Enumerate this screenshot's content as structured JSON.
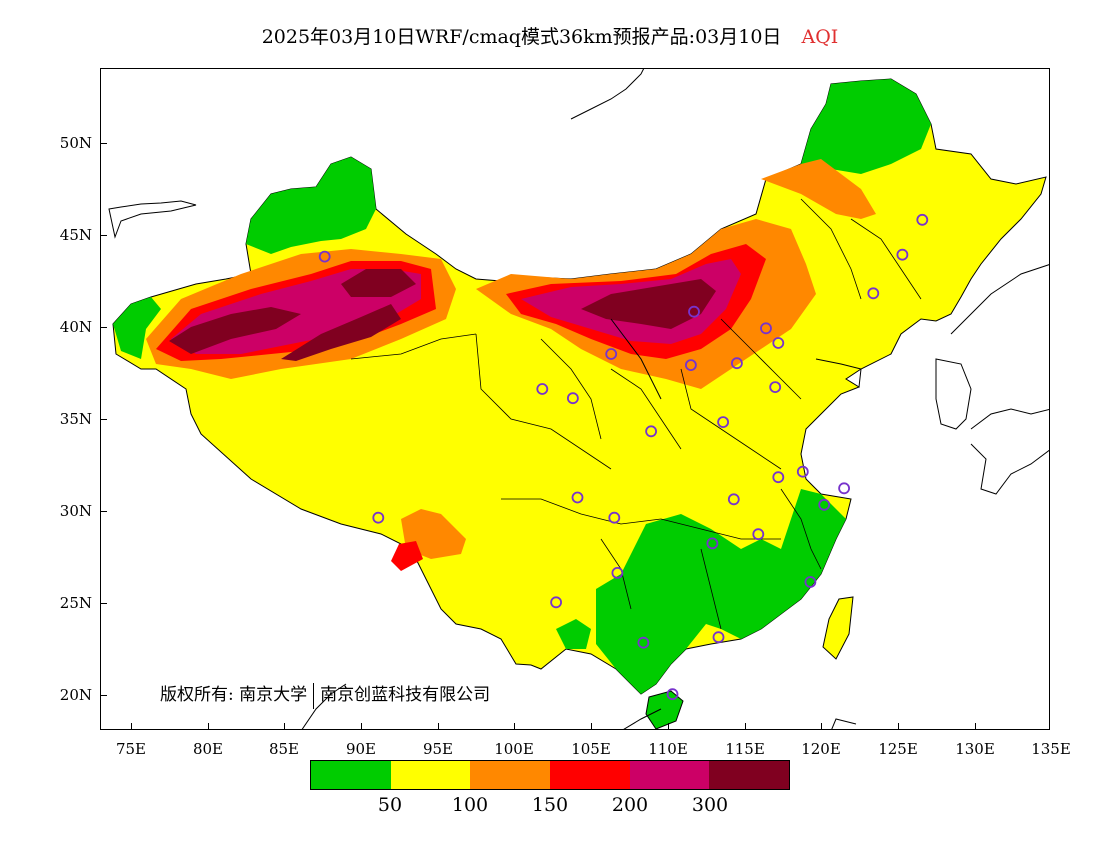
{
  "title": {
    "text": "2025年03月10日WRF/cmaq模式36km预报产品:03月10日",
    "variable": "AQI",
    "variable_color": "#e03030"
  },
  "map": {
    "lon_range": [
      73,
      135
    ],
    "lat_range": [
      18,
      54
    ],
    "x_ticks": [
      "75E",
      "80E",
      "85E",
      "90E",
      "95E",
      "100E",
      "105E",
      "110E",
      "115E",
      "120E",
      "125E",
      "130E",
      "135E"
    ],
    "x_tick_values": [
      75,
      80,
      85,
      90,
      95,
      100,
      105,
      110,
      115,
      120,
      125,
      130,
      135
    ],
    "y_ticks": [
      "20N",
      "25N",
      "30N",
      "35N",
      "40N",
      "45N",
      "50N"
    ],
    "y_tick_values": [
      20,
      25,
      30,
      35,
      40,
      45,
      50
    ],
    "stations": [
      [
        87.6,
        43.8
      ],
      [
        101.8,
        36.6
      ],
      [
        103.8,
        36.1
      ],
      [
        106.3,
        38.5
      ],
      [
        111.7,
        40.8
      ],
      [
        111.5,
        37.9
      ],
      [
        114.5,
        38.0
      ],
      [
        116.4,
        39.9
      ],
      [
        117.2,
        39.1
      ],
      [
        117.0,
        36.7
      ],
      [
        113.6,
        34.8
      ],
      [
        108.9,
        34.3
      ],
      [
        104.1,
        30.7
      ],
      [
        106.5,
        29.6
      ],
      [
        114.3,
        30.6
      ],
      [
        112.9,
        28.2
      ],
      [
        115.9,
        28.7
      ],
      [
        117.2,
        31.8
      ],
      [
        118.8,
        32.1
      ],
      [
        120.2,
        30.3
      ],
      [
        121.5,
        31.2
      ],
      [
        119.3,
        26.1
      ],
      [
        113.3,
        23.1
      ],
      [
        108.4,
        22.8
      ],
      [
        110.3,
        20.0
      ],
      [
        102.7,
        25.0
      ],
      [
        106.7,
        26.6
      ],
      [
        91.1,
        29.6
      ],
      [
        126.6,
        45.8
      ],
      [
        125.3,
        43.9
      ],
      [
        123.4,
        41.8
      ]
    ]
  },
  "copyright": {
    "owner_label": "版权所有:",
    "owner1": "南京大学",
    "owner2": "南京创蓝科技有限公司"
  },
  "legend": {
    "colors": [
      "#00cc00",
      "#ffff00",
      "#ff8800",
      "#ff0000",
      "#cc0066",
      "#800020"
    ],
    "labels": [
      "50",
      "100",
      "150",
      "200",
      "300"
    ]
  }
}
